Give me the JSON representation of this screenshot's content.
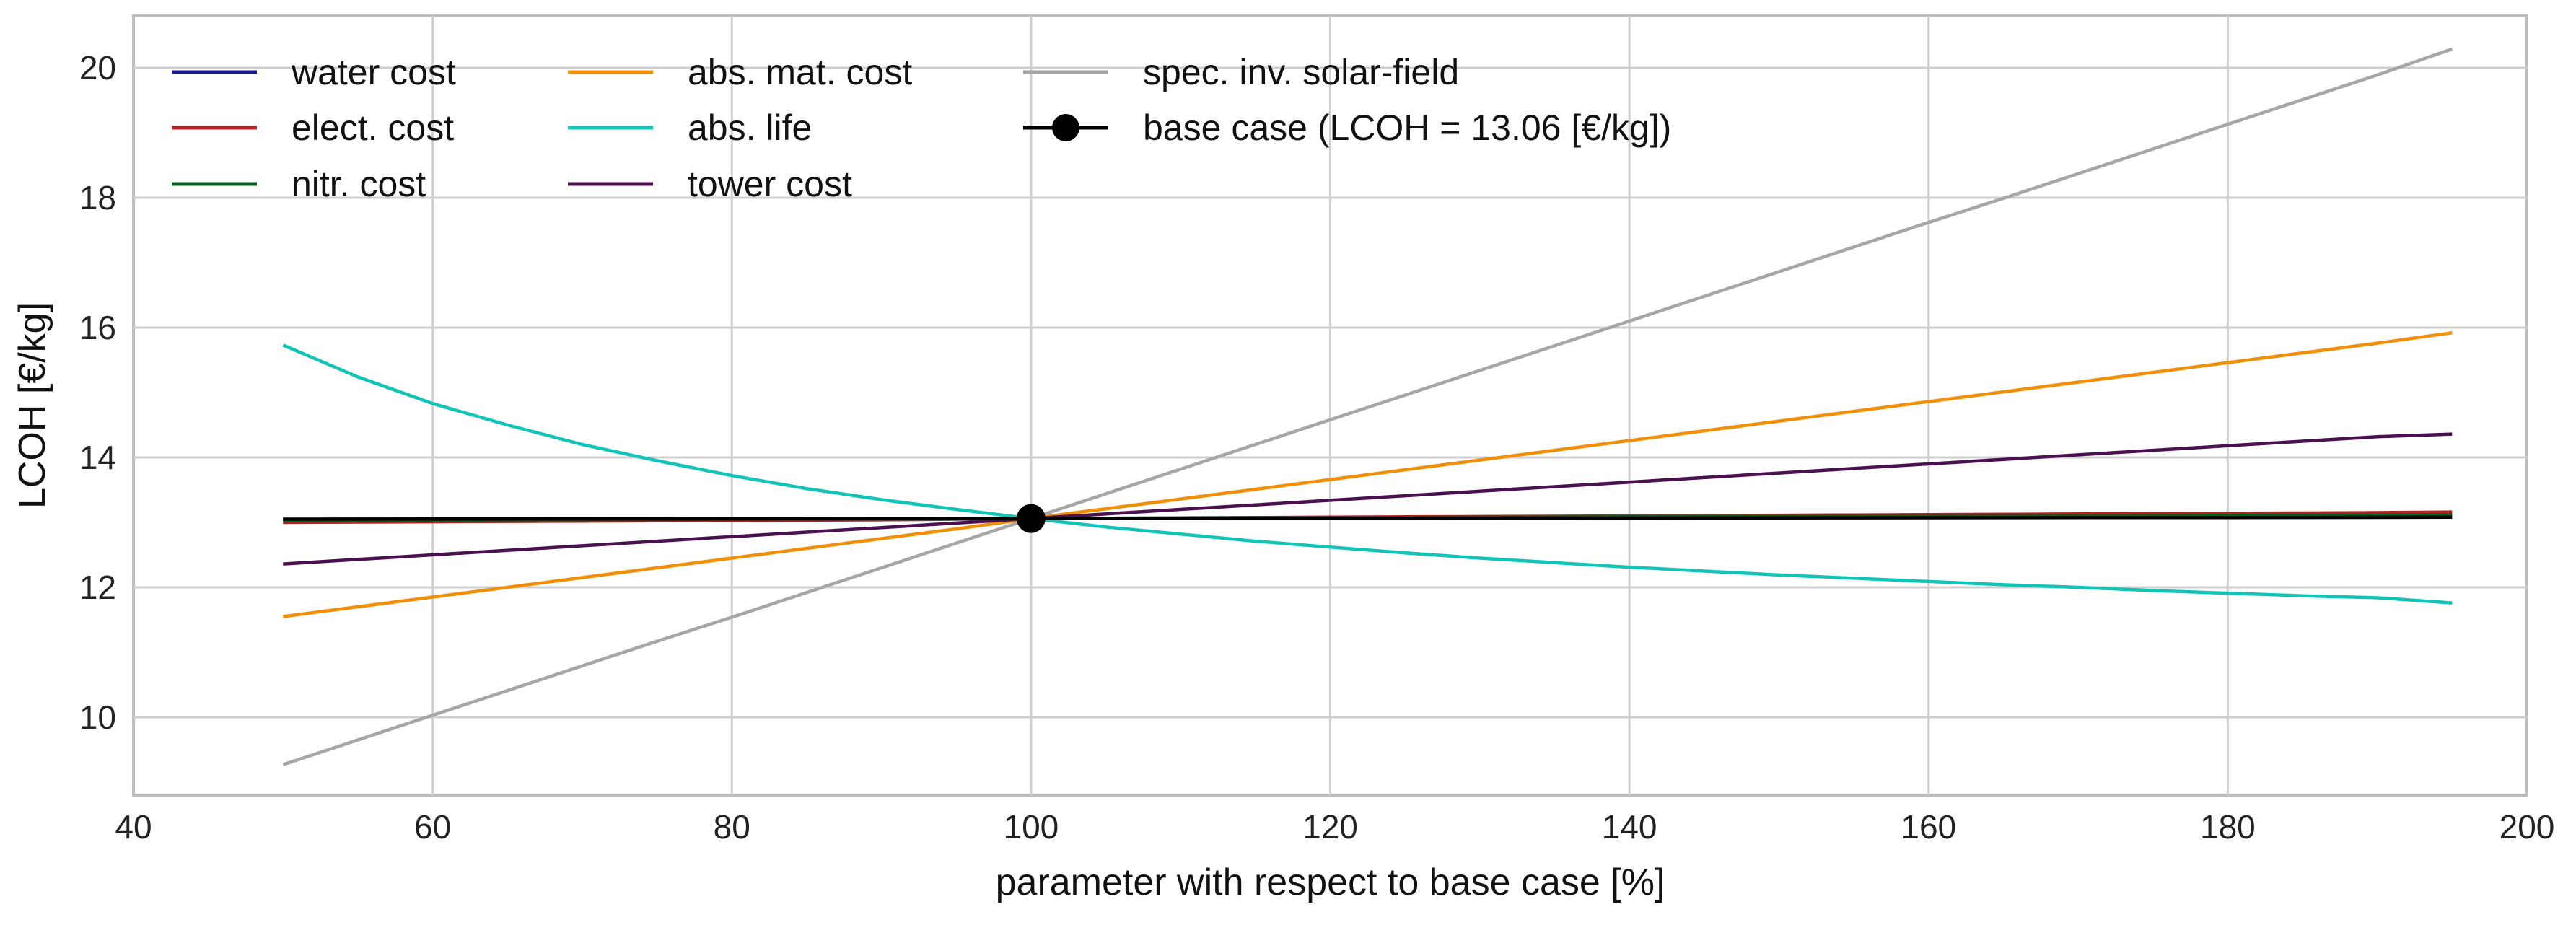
{
  "chart_data": {
    "type": "line",
    "title": "",
    "xlabel": "parameter with respect to base case [%]",
    "ylabel": "LCOH [€/kg]",
    "xlim": [
      40,
      200
    ],
    "ylim": [
      8.8,
      20.8
    ],
    "xticks": [
      40,
      60,
      80,
      100,
      120,
      140,
      160,
      180,
      200
    ],
    "yticks": [
      10,
      12,
      14,
      16,
      18,
      20
    ],
    "grid": true,
    "legend_position": "top-left",
    "x": [
      50,
      55,
      60,
      65,
      70,
      75,
      80,
      85,
      90,
      95,
      100,
      105,
      110,
      115,
      120,
      125,
      130,
      135,
      140,
      145,
      150,
      155,
      160,
      165,
      170,
      175,
      180,
      185,
      190,
      195
    ],
    "series": [
      {
        "name": "water cost",
        "color": "#1a1a8c",
        "values": [
          13.04,
          13.042,
          13.044,
          13.045,
          13.047,
          13.049,
          13.051,
          13.053,
          13.055,
          13.058,
          13.06,
          13.062,
          13.064,
          13.066,
          13.068,
          13.07,
          13.072,
          13.074,
          13.076,
          13.078,
          13.08,
          13.082,
          13.084,
          13.086,
          13.088,
          13.09,
          13.092,
          13.094,
          13.096,
          13.1
        ]
      },
      {
        "name": "elect. cost",
        "color": "#b22222",
        "values": [
          13.0,
          13.005,
          13.01,
          13.015,
          13.02,
          13.025,
          13.03,
          13.035,
          13.04,
          13.05,
          13.06,
          13.065,
          13.07,
          13.075,
          13.08,
          13.085,
          13.09,
          13.095,
          13.1,
          13.105,
          13.11,
          13.115,
          13.12,
          13.125,
          13.13,
          13.135,
          13.14,
          13.145,
          13.15,
          13.16
        ]
      },
      {
        "name": "nitr. cost",
        "color": "#0a5c1e",
        "values": [
          13.03,
          13.033,
          13.036,
          13.039,
          13.042,
          13.045,
          13.048,
          13.051,
          13.054,
          13.057,
          13.06,
          13.063,
          13.066,
          13.069,
          13.072,
          13.075,
          13.078,
          13.081,
          13.084,
          13.087,
          13.09,
          13.093,
          13.096,
          13.099,
          13.102,
          13.105,
          13.108,
          13.111,
          13.114,
          13.12
        ]
      },
      {
        "name": "abs. mat. cost",
        "color": "#f0900a",
        "values": [
          11.55,
          11.7,
          11.85,
          12.0,
          12.15,
          12.3,
          12.45,
          12.6,
          12.75,
          12.9,
          13.06,
          13.21,
          13.36,
          13.51,
          13.66,
          13.81,
          13.96,
          14.11,
          14.26,
          14.41,
          14.56,
          14.71,
          14.86,
          15.01,
          15.16,
          15.31,
          15.46,
          15.61,
          15.76,
          15.92
        ]
      },
      {
        "name": "abs. life",
        "color": "#12c4b8",
        "values": [
          15.73,
          15.24,
          14.83,
          14.5,
          14.2,
          13.95,
          13.72,
          13.52,
          13.35,
          13.2,
          13.06,
          12.93,
          12.82,
          12.71,
          12.62,
          12.53,
          12.45,
          12.38,
          12.31,
          12.25,
          12.19,
          12.14,
          12.09,
          12.04,
          12.0,
          11.95,
          11.91,
          11.87,
          11.84,
          11.76
        ]
      },
      {
        "name": "tower cost",
        "color": "#4a1050",
        "values": [
          12.36,
          12.43,
          12.5,
          12.57,
          12.64,
          12.71,
          12.78,
          12.85,
          12.92,
          12.99,
          13.06,
          13.13,
          13.2,
          13.27,
          13.34,
          13.41,
          13.48,
          13.55,
          13.62,
          13.69,
          13.76,
          13.83,
          13.9,
          13.97,
          14.04,
          14.11,
          14.18,
          14.25,
          14.32,
          14.36
        ]
      },
      {
        "name": "spec. inv. solar-field",
        "color": "#a6a6a6",
        "values": [
          9.27,
          9.65,
          10.03,
          10.41,
          10.79,
          11.17,
          11.54,
          11.92,
          12.3,
          12.68,
          13.06,
          13.44,
          13.82,
          14.2,
          14.58,
          14.96,
          15.34,
          15.72,
          16.1,
          16.48,
          16.86,
          17.24,
          17.62,
          17.99,
          18.37,
          18.75,
          19.13,
          19.51,
          19.89,
          20.29
        ]
      },
      {
        "name": "base case (LCOH = 13.06 [€/kg])",
        "color": "#000000",
        "values": [
          13.05,
          13.051,
          13.052,
          13.053,
          13.054,
          13.055,
          13.056,
          13.057,
          13.058,
          13.059,
          13.06,
          13.061,
          13.062,
          13.063,
          13.064,
          13.065,
          13.066,
          13.067,
          13.068,
          13.069,
          13.07,
          13.071,
          13.072,
          13.073,
          13.074,
          13.075,
          13.076,
          13.077,
          13.078,
          13.08
        ]
      }
    ],
    "base_point": {
      "label": "base case (LCOH = 13.06 [€/kg])",
      "x": 100,
      "y": 13.06
    },
    "legend": [
      {
        "label": "water cost",
        "color": "#1a1a8c",
        "marker": false
      },
      {
        "label": "elect. cost",
        "color": "#b22222",
        "marker": false
      },
      {
        "label": "nitr. cost",
        "color": "#0a5c1e",
        "marker": false
      },
      {
        "label": "abs. mat. cost",
        "color": "#f0900a",
        "marker": false
      },
      {
        "label": "abs. life",
        "color": "#12c4b8",
        "marker": false
      },
      {
        "label": "tower cost",
        "color": "#4a1050",
        "marker": false
      },
      {
        "label": "spec. inv. solar-field",
        "color": "#a6a6a6",
        "marker": false
      },
      {
        "label": "base case (LCOH = 13.06 [€/kg])",
        "color": "#000000",
        "marker": true
      }
    ]
  }
}
